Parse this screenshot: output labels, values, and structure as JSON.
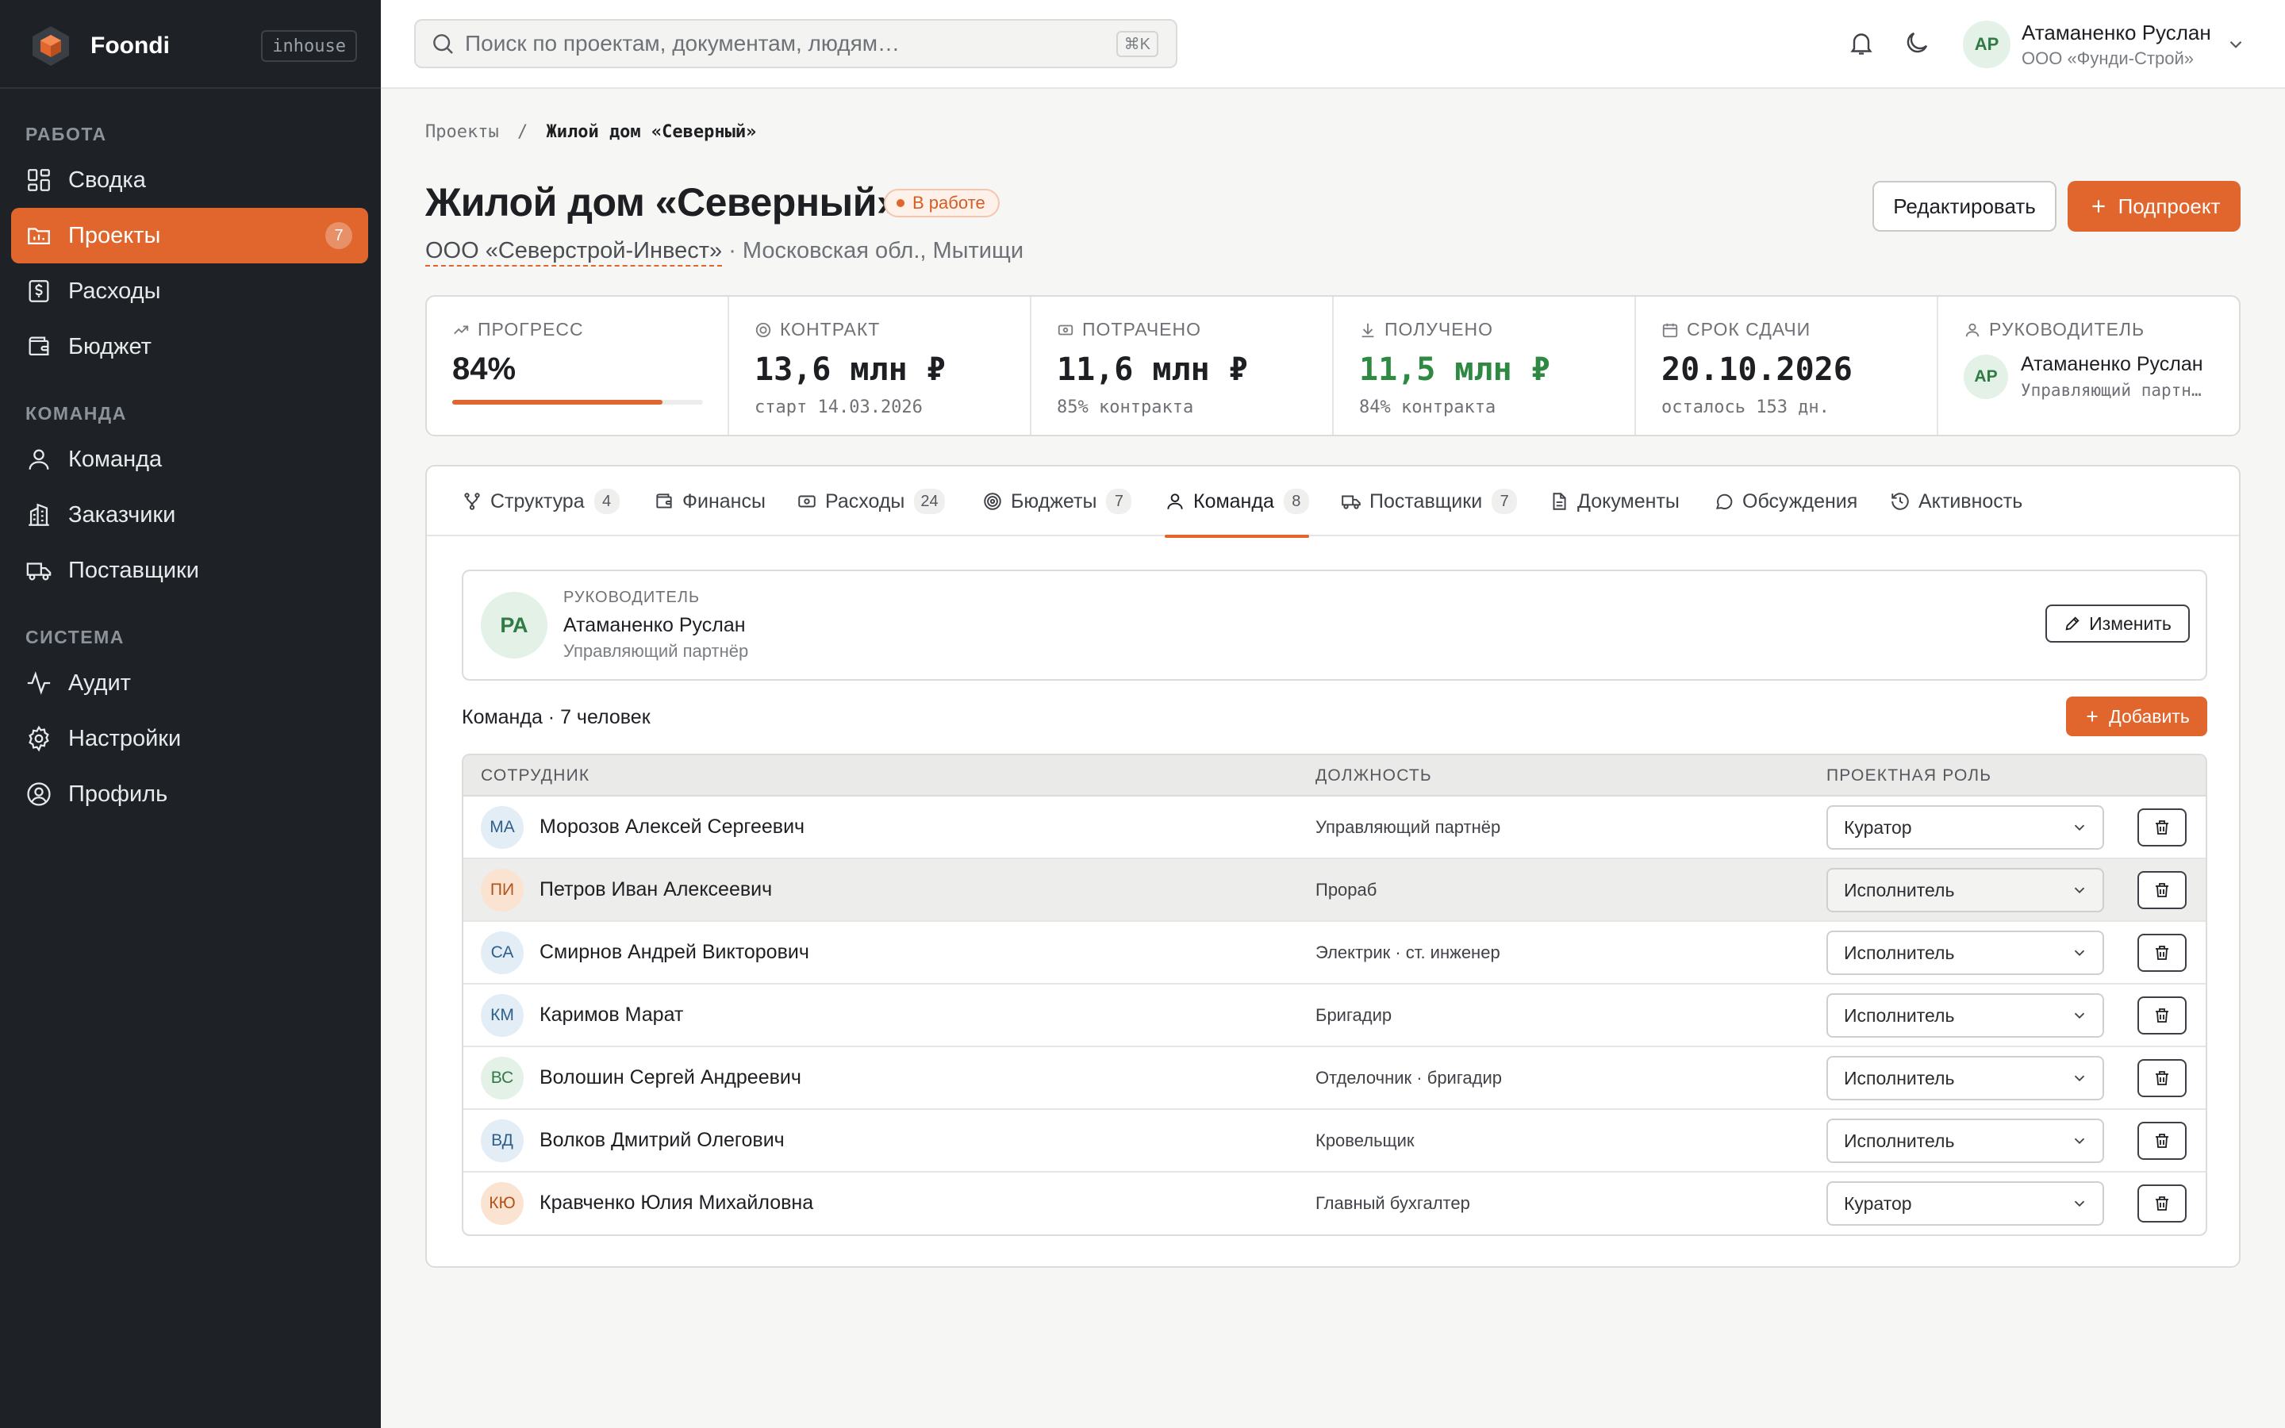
{
  "app": {
    "name": "Foondi",
    "tag": "inhouse"
  },
  "sidebar": {
    "sections": [
      {
        "title": "РАБОТА"
      },
      {
        "title": "КОМАНДА"
      },
      {
        "title": "СИСТЕМА"
      }
    ],
    "items": [
      {
        "label": "Сводка",
        "icon": "dashboard-icon"
      },
      {
        "label": "Проекты",
        "icon": "projects-icon",
        "count": "7",
        "active": true
      },
      {
        "label": "Расходы",
        "icon": "expenses-icon"
      },
      {
        "label": "Бюджет",
        "icon": "wallet-icon"
      },
      {
        "label": "Команда",
        "icon": "user-icon"
      },
      {
        "label": "Заказчики",
        "icon": "building-icon"
      },
      {
        "label": "Поставщики",
        "icon": "truck-icon"
      },
      {
        "label": "Аудит",
        "icon": "activity-icon"
      },
      {
        "label": "Настройки",
        "icon": "gear-icon"
      },
      {
        "label": "Профиль",
        "icon": "profile-icon"
      }
    ]
  },
  "topbar": {
    "search_placeholder": "Поиск по проектам, документам, людям…",
    "search_shortcut": "⌘K",
    "user": {
      "initials": "АР",
      "name": "Атаманенко Руслан",
      "company": "ООО «Фунди-Строй»"
    }
  },
  "breadcrumb": {
    "parent": "Проекты",
    "separator": "/",
    "current": "Жилой дом «Северный»"
  },
  "project": {
    "title": "Жилой дом «Северный»",
    "status": "В работе",
    "client": "ООО «Северстрой-Инвест»",
    "location": "· Московская обл., Мытищи",
    "edit_label": "Редактировать",
    "subproject_label": "Подпроект"
  },
  "stats": {
    "progress": {
      "label": "ПРОГРЕСС",
      "value": "84%",
      "fraction": 0.84
    },
    "contract": {
      "label": "КОНТРАКТ",
      "value": "13,6 млн ₽",
      "note": "старт 14.03.2026"
    },
    "spent": {
      "label": "ПОТРАЧЕНО",
      "value": "11,6 млн ₽",
      "note": "85% контракта"
    },
    "received": {
      "label": "ПОЛУЧЕНО",
      "value": "11,5 млн ₽",
      "note": "84% контракта"
    },
    "deadline": {
      "label": "СРОК СДАЧИ",
      "value": "20.10.2026",
      "note": "осталось 153 дн."
    },
    "manager": {
      "label": "РУКОВОДИТЕЛЬ",
      "initials": "АР",
      "name": "Атаманенко Руслан",
      "role": "Управляющий партнёр"
    }
  },
  "tabs": [
    {
      "label": "Структура",
      "count": "4",
      "icon": "structure-icon"
    },
    {
      "label": "Финансы",
      "icon": "finance-icon"
    },
    {
      "label": "Расходы",
      "count": "24",
      "icon": "cash-icon"
    },
    {
      "label": "Бюджеты",
      "count": "7",
      "icon": "target-icon"
    },
    {
      "label": "Команда",
      "count": "8",
      "icon": "user-icon",
      "active": true
    },
    {
      "label": "Поставщики",
      "count": "7",
      "icon": "truck-icon"
    },
    {
      "label": "Документы",
      "icon": "document-icon"
    },
    {
      "label": "Обсуждения",
      "icon": "chat-icon"
    },
    {
      "label": "Активность",
      "icon": "history-icon"
    }
  ],
  "lead": {
    "label": "РУКОВОДИТЕЛЬ",
    "initials": "РА",
    "name": "Атаманенко Руслан",
    "role": "Управляющий партнёр",
    "change_label": "Изменить"
  },
  "team": {
    "heading": "Команда · 7 человек",
    "add_label": "Добавить",
    "columns": [
      "СОТРУДНИК",
      "ДОЛЖНОСТЬ",
      "ПРОЕКТНАЯ РОЛЬ"
    ],
    "rows": [
      {
        "initials": "МА",
        "name": "Морозов Алексей Сергеевич",
        "position": "Управляющий партнёр",
        "role": "Куратор",
        "bg": "#e3edf6",
        "fg": "#2e5f8a"
      },
      {
        "initials": "ПИ",
        "name": "Петров Иван Алексеевич",
        "position": "Прораб",
        "role": "Исполнитель",
        "bg": "#fbe3d2",
        "fg": "#b2521c"
      },
      {
        "initials": "СА",
        "name": "Смирнов Андрей Викторович",
        "position": "Электрик · ст. инженер",
        "role": "Исполнитель",
        "bg": "#e3edf6",
        "fg": "#2e5f8a"
      },
      {
        "initials": "КМ",
        "name": "Каримов Марат",
        "position": "Бригадир",
        "role": "Исполнитель",
        "bg": "#e3edf6",
        "fg": "#2e5f8a"
      },
      {
        "initials": "ВС",
        "name": "Волошин Сергей Андреевич",
        "position": "Отделочник · бригадир",
        "role": "Исполнитель",
        "bg": "#e3f1e6",
        "fg": "#2f7a45"
      },
      {
        "initials": "ВД",
        "name": "Волков Дмитрий Олегович",
        "position": "Кровельщик",
        "role": "Исполнитель",
        "bg": "#e3edf6",
        "fg": "#2e5f8a"
      },
      {
        "initials": "КЮ",
        "name": "Кравченко Юлия Михайловна",
        "position": "Главный бухгалтер",
        "role": "Куратор",
        "bg": "#fbe3d2",
        "fg": "#b2521c"
      }
    ]
  },
  "colors": {
    "accent": "#e0662d",
    "sidebar": "#1e2227",
    "success": "#2e8a43"
  }
}
